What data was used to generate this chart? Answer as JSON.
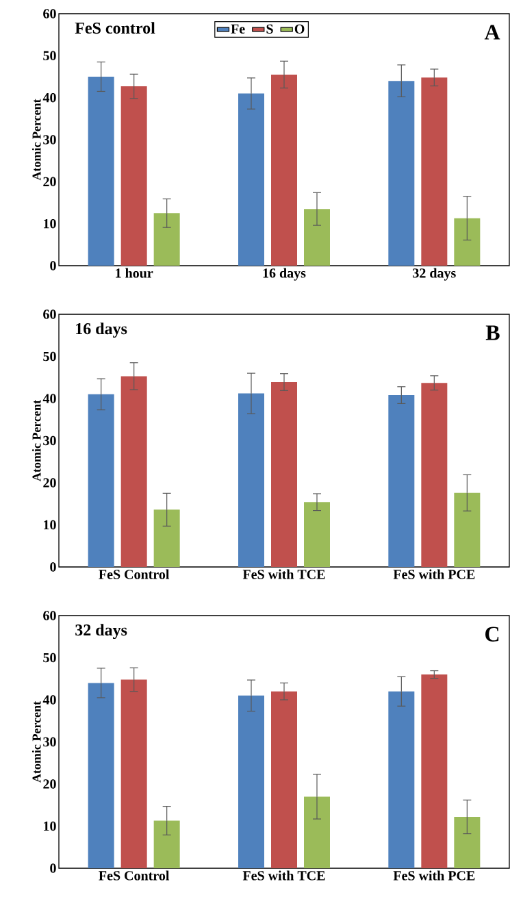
{
  "chart_data": [
    {
      "type": "bar",
      "title": "FeS control",
      "annotations": [
        "A"
      ],
      "ylabel": "Atomic Percent",
      "categories": [
        "1 hour",
        "16 days",
        "32 days"
      ],
      "ylim": [
        0,
        60
      ],
      "yticks": [
        0,
        10,
        20,
        30,
        40,
        50,
        60
      ],
      "legend": "top",
      "series": [
        {
          "name": "Fe",
          "color": "#4f81bd",
          "values": [
            45,
            41,
            44
          ],
          "errors": [
            3.5,
            3.7,
            3.8
          ]
        },
        {
          "name": "S",
          "color": "#c0504d",
          "values": [
            42.7,
            45.5,
            44.8
          ],
          "errors": [
            2.9,
            3.2,
            2
          ]
        },
        {
          "name": "O",
          "color": "#9bbb59",
          "values": [
            12.5,
            13.5,
            11.3
          ],
          "errors": [
            3.4,
            3.9,
            5.2
          ]
        }
      ]
    },
    {
      "type": "bar",
      "title": "16 days",
      "annotations": [
        "B"
      ],
      "ylabel": "Atomic Percent",
      "categories": [
        "FeS Control",
        "FeS with TCE",
        "FeS with PCE"
      ],
      "ylim": [
        0,
        60
      ],
      "yticks": [
        0,
        10,
        20,
        30,
        40,
        50,
        60
      ],
      "series": [
        {
          "color": "#4f81bd",
          "values": [
            41,
            41.2,
            40.8
          ],
          "errors": [
            3.7,
            4.8,
            2
          ]
        },
        {
          "color": "#c0504d",
          "values": [
            45.3,
            43.9,
            43.7
          ],
          "errors": [
            3.2,
            2,
            1.7
          ]
        },
        {
          "color": "#9bbb59",
          "values": [
            13.6,
            15.4,
            17.6
          ],
          "errors": [
            3.9,
            2,
            4.3
          ]
        }
      ]
    },
    {
      "type": "bar",
      "title": "32 days",
      "annotations": [
        "C"
      ],
      "ylabel": "Atomic Percent",
      "categories": [
        "FeS Control",
        "FeS with TCE",
        "FeS with PCE"
      ],
      "ylim": [
        0,
        60
      ],
      "yticks": [
        0,
        10,
        20,
        30,
        40,
        50,
        60
      ],
      "series": [
        {
          "color": "#4f81bd",
          "values": [
            44,
            41,
            42
          ],
          "errors": [
            3.5,
            3.7,
            3.5
          ]
        },
        {
          "color": "#c0504d",
          "values": [
            44.8,
            42,
            46
          ],
          "errors": [
            2.8,
            2,
            0.9
          ]
        },
        {
          "color": "#9bbb59",
          "values": [
            11.3,
            17,
            12.2
          ],
          "errors": [
            3.4,
            5.3,
            4
          ]
        }
      ]
    }
  ]
}
